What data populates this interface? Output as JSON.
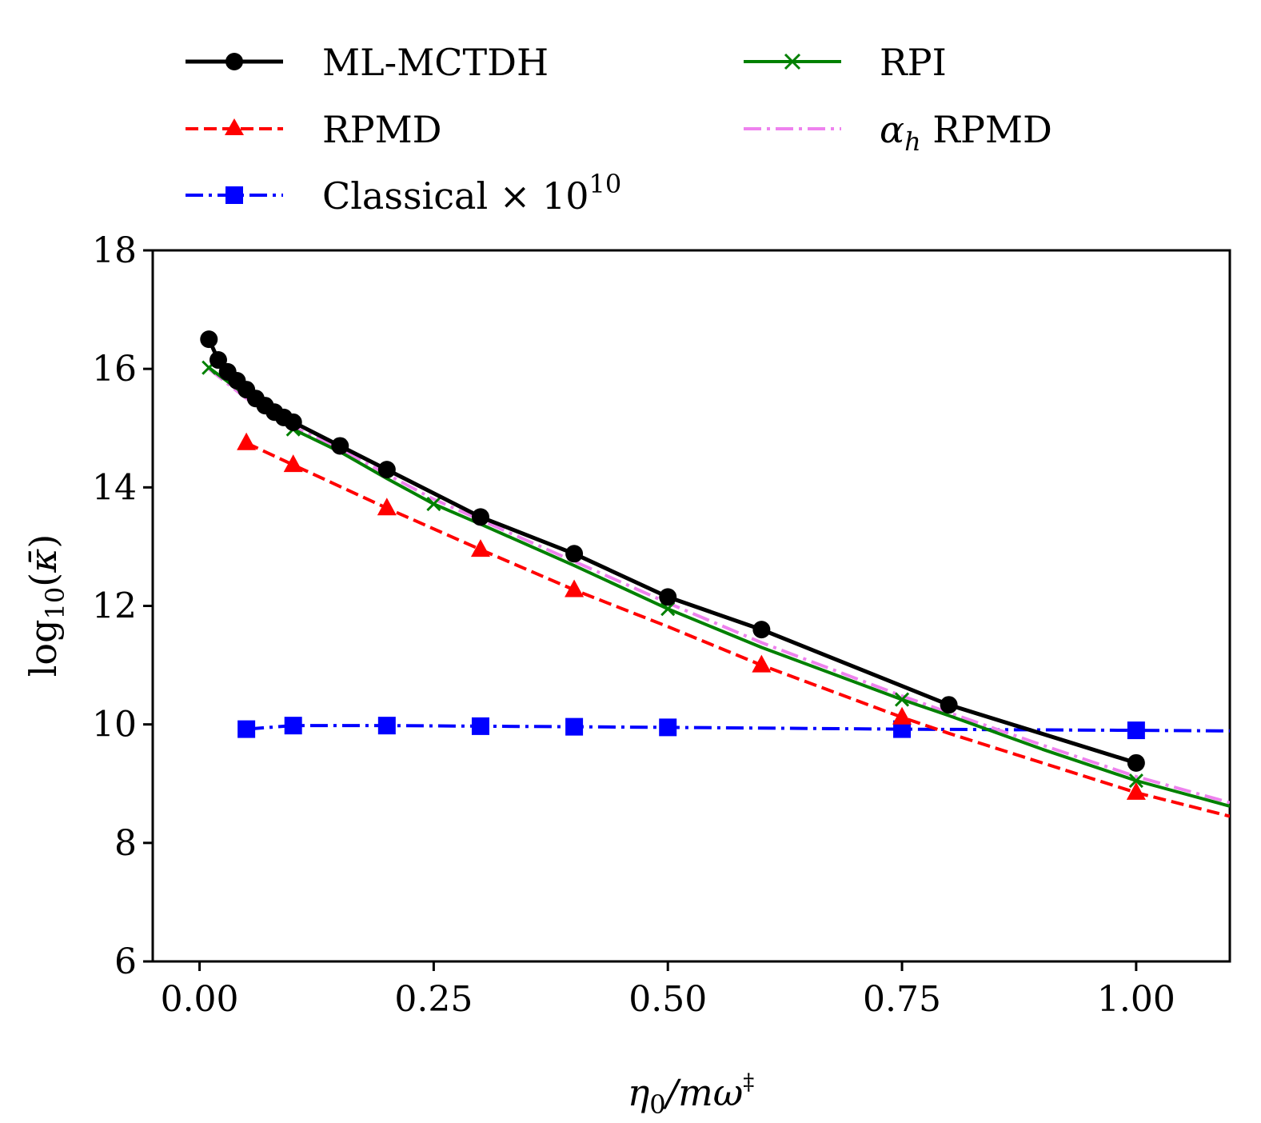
{
  "chart_data": {
    "type": "line",
    "title": "",
    "xlabel_parts": {
      "eta": "η",
      "sub0": "0",
      "rest": "/mω",
      "sup": "‡"
    },
    "ylabel_parts": {
      "log": "log",
      "sub": "10",
      "open": "(",
      "kappa": "κ̄",
      "close": ")"
    },
    "xlim": [
      -0.05,
      1.1
    ],
    "ylim": [
      6,
      18
    ],
    "xticks": [
      0.0,
      0.25,
      0.5,
      0.75,
      1.0
    ],
    "xtick_labels": [
      "0.00",
      "0.25",
      "0.50",
      "0.75",
      "1.00"
    ],
    "yticks": [
      6,
      8,
      10,
      12,
      14,
      16,
      18
    ],
    "ytick_labels": [
      "6",
      "8",
      "10",
      "12",
      "14",
      "16",
      "18"
    ],
    "grid": false,
    "legend_position": "above plot, two columns",
    "series": [
      {
        "key": "mlmctdh",
        "name": "ML-MCTDH",
        "color": "#000000",
        "linestyle": "solid",
        "marker": "circle",
        "x": [
          0.01,
          0.02,
          0.03,
          0.04,
          0.05,
          0.06,
          0.07,
          0.08,
          0.09,
          0.1,
          0.15,
          0.2,
          0.3,
          0.4,
          0.5,
          0.6,
          0.8,
          1.0
        ],
        "y": [
          16.5,
          16.15,
          15.95,
          15.8,
          15.65,
          15.5,
          15.38,
          15.27,
          15.18,
          15.1,
          14.7,
          14.3,
          13.5,
          12.88,
          12.15,
          11.6,
          10.33,
          9.35
        ]
      },
      {
        "key": "rpmd",
        "name": "RPMD",
        "color": "#ff0000",
        "linestyle": "dashed",
        "marker": "triangle",
        "x": [
          0.05,
          0.1,
          0.2,
          0.3,
          0.4,
          0.6,
          0.75,
          1.0
        ],
        "y": [
          14.75,
          14.38,
          13.65,
          12.95,
          12.27,
          11.0,
          10.12,
          8.85
        ],
        "line_x": [
          0.05,
          0.1,
          0.2,
          0.3,
          0.4,
          0.5,
          0.6,
          0.75,
          0.8,
          1.0,
          1.1
        ],
        "line_y": [
          14.75,
          14.38,
          13.65,
          12.95,
          12.27,
          11.65,
          11.0,
          10.12,
          9.85,
          8.85,
          8.45
        ]
      },
      {
        "key": "classical",
        "name": "Classical × 10",
        "name_sup": "10",
        "color": "#0000ff",
        "linestyle": "dashdot",
        "marker": "square",
        "x": [
          0.05,
          0.1,
          0.2,
          0.3,
          0.4,
          0.5,
          0.75,
          1.0
        ],
        "y": [
          9.92,
          9.98,
          9.98,
          9.97,
          9.96,
          9.95,
          9.92,
          9.9
        ],
        "line_x": [
          0.05,
          0.1,
          0.2,
          0.3,
          0.4,
          0.5,
          0.75,
          1.0,
          1.1
        ],
        "line_y": [
          9.92,
          9.98,
          9.98,
          9.97,
          9.96,
          9.95,
          9.92,
          9.9,
          9.89
        ]
      },
      {
        "key": "rpi",
        "name": "RPI",
        "color": "#008000",
        "linestyle": "solid",
        "marker": "x",
        "x": [
          0.01,
          0.1,
          0.25,
          0.5,
          0.75,
          1.0
        ],
        "y": [
          16.02,
          14.98,
          13.72,
          11.95,
          10.42,
          9.05
        ],
        "line_x": [
          0.01,
          0.05,
          0.1,
          0.15,
          0.2,
          0.25,
          0.3,
          0.4,
          0.5,
          0.6,
          0.75,
          0.8,
          0.9,
          1.0,
          1.1
        ],
        "line_y": [
          16.02,
          15.55,
          14.98,
          14.6,
          14.15,
          13.72,
          13.38,
          12.68,
          11.95,
          11.3,
          10.42,
          10.15,
          9.58,
          9.05,
          8.62
        ]
      },
      {
        "key": "alphah",
        "name": "α",
        "name_sub": "h",
        "name_rest": " RPMD",
        "color": "#ee82ee",
        "linestyle": "dashdot",
        "marker": "none",
        "x": [],
        "y": [],
        "line_x": [
          0.01,
          0.05,
          0.1,
          0.15,
          0.2,
          0.25,
          0.3,
          0.4,
          0.5,
          0.6,
          0.75,
          0.8,
          0.9,
          1.0,
          1.1
        ],
        "line_y": [
          16.0,
          15.5,
          15.02,
          14.65,
          14.22,
          13.8,
          13.45,
          12.75,
          12.05,
          11.38,
          10.48,
          10.2,
          9.65,
          9.12,
          8.68
        ]
      }
    ]
  }
}
